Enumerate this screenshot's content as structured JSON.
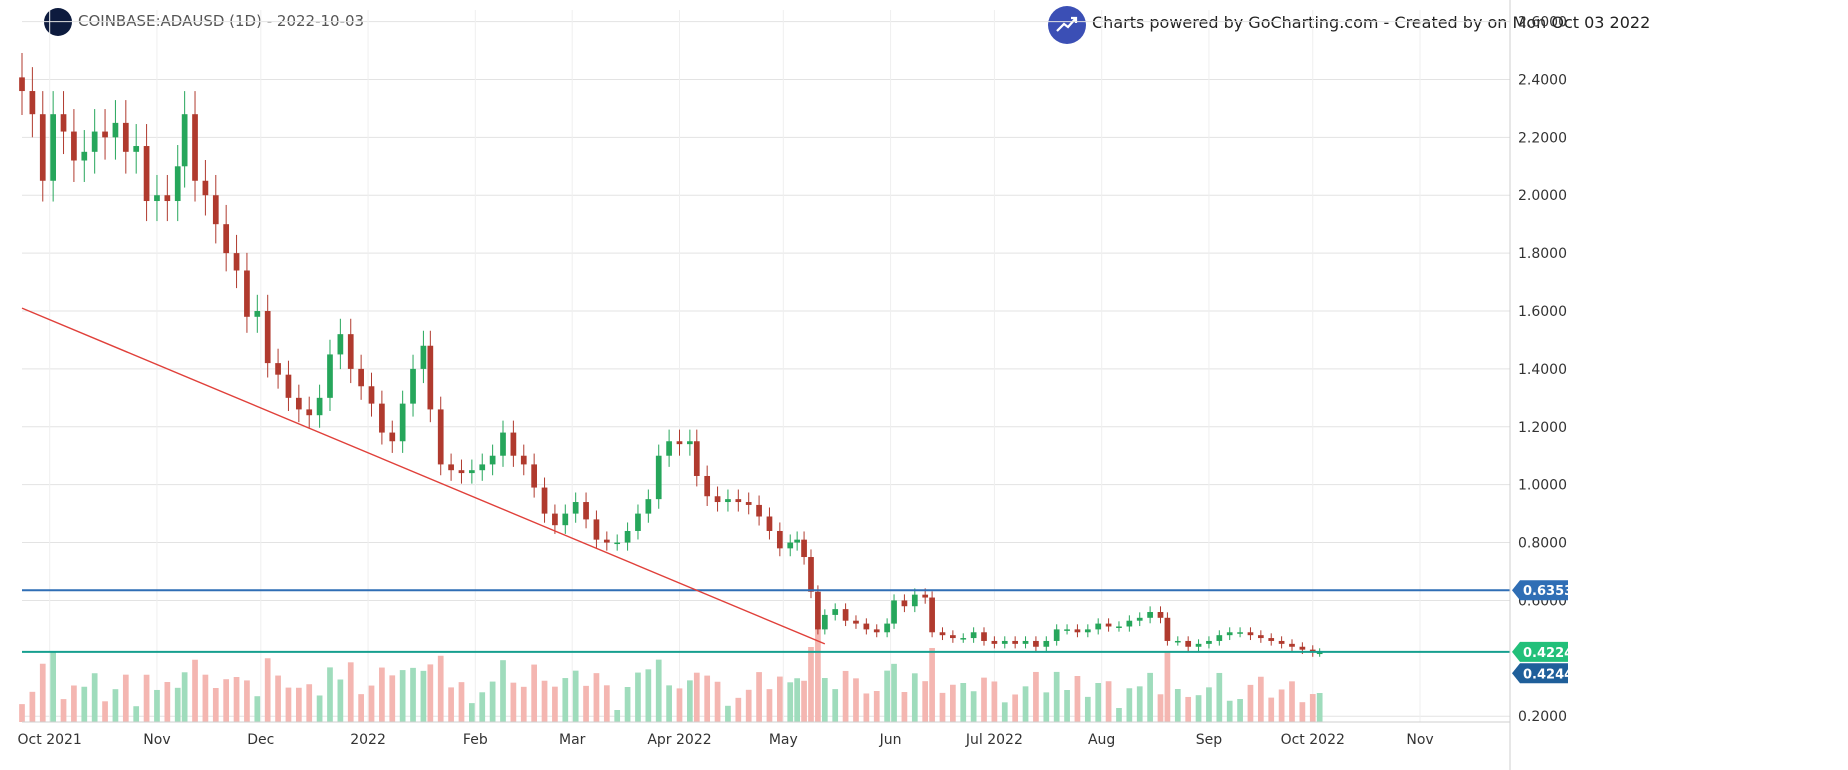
{
  "header": {
    "symbol_text": "COINBASE:ADAUSD (1D) - 2022-10-03",
    "powered_text": "Charts powered by GoCharting.com - Created by  on Mon Oct 03 2022",
    "logo_icon": "cardano-coin-icon",
    "powered_icon": "trend-up-chart-icon"
  },
  "colors": {
    "up": "#26a65b",
    "down": "#b03a2e",
    "vol_up": "#9fdcbc",
    "vol_down": "#f4b6b1",
    "resistance": "#2f6eb5",
    "support": "#169f8f",
    "trendline": "#e0403a",
    "grid": "#e3e3e3"
  },
  "chart_data": {
    "type": "candlestick",
    "title": "COINBASE:ADAUSD (1D) - 2022-10-03",
    "xlabel": "",
    "ylabel": "",
    "ylim": [
      0.18,
      2.64
    ],
    "y_ticks": [
      "2.6000",
      "2.4000",
      "2.2000",
      "2.0000",
      "1.8000",
      "1.6000",
      "1.4000",
      "1.2000",
      "1.0000",
      "0.8000",
      "0.6000",
      "0.2000"
    ],
    "y_tick_values": [
      2.6,
      2.4,
      2.2,
      2.0,
      1.8,
      1.6,
      1.4,
      1.2,
      1.0,
      0.8,
      0.6,
      0.2
    ],
    "x_ticks": [
      {
        "label": "Oct 2021",
        "date": "2021-10-01"
      },
      {
        "label": "Nov",
        "date": "2021-11-01"
      },
      {
        "label": "Dec",
        "date": "2021-12-01"
      },
      {
        "label": "2022",
        "date": "2022-01-01"
      },
      {
        "label": "Feb",
        "date": "2022-02-01"
      },
      {
        "label": "Mar",
        "date": "2022-03-01"
      },
      {
        "label": "Apr 2022",
        "date": "2022-04-01"
      },
      {
        "label": "May",
        "date": "2022-05-01"
      },
      {
        "label": "Jun",
        "date": "2022-06-01"
      },
      {
        "label": "Jul 2022",
        "date": "2022-07-01"
      },
      {
        "label": "Aug",
        "date": "2022-08-01"
      },
      {
        "label": "Sep",
        "date": "2022-09-01"
      },
      {
        "label": "Oct 2022",
        "date": "2022-10-01"
      },
      {
        "label": "Nov",
        "date": "2022-11-01"
      }
    ],
    "x_range": [
      "2021-09-23",
      "2022-11-27"
    ],
    "series": [
      {
        "name": "ADAUSD close",
        "points": [
          [
            "2021-09-23",
            2.36
          ],
          [
            "2021-09-26",
            2.28
          ],
          [
            "2021-09-29",
            2.05
          ],
          [
            "2021-10-02",
            2.28
          ],
          [
            "2021-10-05",
            2.22
          ],
          [
            "2021-10-08",
            2.12
          ],
          [
            "2021-10-11",
            2.15
          ],
          [
            "2021-10-14",
            2.22
          ],
          [
            "2021-10-17",
            2.2
          ],
          [
            "2021-10-20",
            2.25
          ],
          [
            "2021-10-23",
            2.15
          ],
          [
            "2021-10-26",
            2.17
          ],
          [
            "2021-10-29",
            1.98
          ],
          [
            "2021-11-01",
            2.0
          ],
          [
            "2021-11-04",
            1.98
          ],
          [
            "2021-11-07",
            2.1
          ],
          [
            "2021-11-09",
            2.28
          ],
          [
            "2021-11-12",
            2.05
          ],
          [
            "2021-11-15",
            2.0
          ],
          [
            "2021-11-18",
            1.9
          ],
          [
            "2021-11-21",
            1.8
          ],
          [
            "2021-11-24",
            1.74
          ],
          [
            "2021-11-27",
            1.58
          ],
          [
            "2021-11-30",
            1.6
          ],
          [
            "2021-12-03",
            1.42
          ],
          [
            "2021-12-06",
            1.38
          ],
          [
            "2021-12-09",
            1.3
          ],
          [
            "2021-12-12",
            1.26
          ],
          [
            "2021-12-15",
            1.24
          ],
          [
            "2021-12-18",
            1.3
          ],
          [
            "2021-12-21",
            1.45
          ],
          [
            "2021-12-24",
            1.52
          ],
          [
            "2021-12-27",
            1.4
          ],
          [
            "2021-12-30",
            1.34
          ],
          [
            "2022-01-02",
            1.28
          ],
          [
            "2022-01-05",
            1.18
          ],
          [
            "2022-01-08",
            1.15
          ],
          [
            "2022-01-11",
            1.28
          ],
          [
            "2022-01-14",
            1.4
          ],
          [
            "2022-01-17",
            1.48
          ],
          [
            "2022-01-19",
            1.26
          ],
          [
            "2022-01-22",
            1.07
          ],
          [
            "2022-01-25",
            1.05
          ],
          [
            "2022-01-28",
            1.04
          ],
          [
            "2022-01-31",
            1.05
          ],
          [
            "2022-02-03",
            1.07
          ],
          [
            "2022-02-06",
            1.1
          ],
          [
            "2022-02-09",
            1.18
          ],
          [
            "2022-02-12",
            1.1
          ],
          [
            "2022-02-15",
            1.07
          ],
          [
            "2022-02-18",
            0.99
          ],
          [
            "2022-02-21",
            0.9
          ],
          [
            "2022-02-24",
            0.86
          ],
          [
            "2022-02-27",
            0.9
          ],
          [
            "2022-03-02",
            0.94
          ],
          [
            "2022-03-05",
            0.88
          ],
          [
            "2022-03-08",
            0.81
          ],
          [
            "2022-03-11",
            0.8
          ],
          [
            "2022-03-14",
            0.8
          ],
          [
            "2022-03-17",
            0.84
          ],
          [
            "2022-03-20",
            0.9
          ],
          [
            "2022-03-23",
            0.95
          ],
          [
            "2022-03-26",
            1.1
          ],
          [
            "2022-03-29",
            1.15
          ],
          [
            "2022-04-01",
            1.14
          ],
          [
            "2022-04-04",
            1.15
          ],
          [
            "2022-04-06",
            1.03
          ],
          [
            "2022-04-09",
            0.96
          ],
          [
            "2022-04-12",
            0.94
          ],
          [
            "2022-04-15",
            0.95
          ],
          [
            "2022-04-18",
            0.94
          ],
          [
            "2022-04-21",
            0.93
          ],
          [
            "2022-04-24",
            0.89
          ],
          [
            "2022-04-27",
            0.84
          ],
          [
            "2022-04-30",
            0.78
          ],
          [
            "2022-05-03",
            0.8
          ],
          [
            "2022-05-05",
            0.81
          ],
          [
            "2022-05-07",
            0.75
          ],
          [
            "2022-05-09",
            0.63
          ],
          [
            "2022-05-11",
            0.5
          ],
          [
            "2022-05-13",
            0.55
          ],
          [
            "2022-05-16",
            0.57
          ],
          [
            "2022-05-19",
            0.53
          ],
          [
            "2022-05-22",
            0.52
          ],
          [
            "2022-05-25",
            0.5
          ],
          [
            "2022-05-28",
            0.49
          ],
          [
            "2022-05-31",
            0.52
          ],
          [
            "2022-06-02",
            0.6
          ],
          [
            "2022-06-05",
            0.58
          ],
          [
            "2022-06-08",
            0.62
          ],
          [
            "2022-06-11",
            0.61
          ],
          [
            "2022-06-13",
            0.49
          ],
          [
            "2022-06-16",
            0.48
          ],
          [
            "2022-06-19",
            0.47
          ],
          [
            "2022-06-22",
            0.47
          ],
          [
            "2022-06-25",
            0.49
          ],
          [
            "2022-06-28",
            0.46
          ],
          [
            "2022-07-01",
            0.45
          ],
          [
            "2022-07-04",
            0.46
          ],
          [
            "2022-07-07",
            0.45
          ],
          [
            "2022-07-10",
            0.46
          ],
          [
            "2022-07-13",
            0.44
          ],
          [
            "2022-07-16",
            0.46
          ],
          [
            "2022-07-19",
            0.5
          ],
          [
            "2022-07-22",
            0.5
          ],
          [
            "2022-07-25",
            0.49
          ],
          [
            "2022-07-28",
            0.5
          ],
          [
            "2022-07-31",
            0.52
          ],
          [
            "2022-08-03",
            0.51
          ],
          [
            "2022-08-06",
            0.51
          ],
          [
            "2022-08-09",
            0.53
          ],
          [
            "2022-08-12",
            0.54
          ],
          [
            "2022-08-15",
            0.56
          ],
          [
            "2022-08-18",
            0.54
          ],
          [
            "2022-08-20",
            0.46
          ],
          [
            "2022-08-23",
            0.46
          ],
          [
            "2022-08-26",
            0.44
          ],
          [
            "2022-08-29",
            0.45
          ],
          [
            "2022-09-01",
            0.46
          ],
          [
            "2022-09-04",
            0.48
          ],
          [
            "2022-09-07",
            0.49
          ],
          [
            "2022-09-10",
            0.49
          ],
          [
            "2022-09-13",
            0.48
          ],
          [
            "2022-09-16",
            0.47
          ],
          [
            "2022-09-19",
            0.46
          ],
          [
            "2022-09-22",
            0.45
          ],
          [
            "2022-09-25",
            0.44
          ],
          [
            "2022-09-28",
            0.43
          ],
          [
            "2022-10-01",
            0.42
          ],
          [
            "2022-10-03",
            0.42
          ]
        ]
      }
    ],
    "annotations": {
      "resistance_level": 0.6353,
      "support_level": 0.4224,
      "resistance_label": "0.6353",
      "support_label": "0.4224",
      "last_price_label": "0.4244",
      "last_price": 0.4244,
      "trendline": [
        [
          "2021-09-23",
          1.61
        ],
        [
          "2022-05-13",
          0.45
        ]
      ]
    }
  }
}
